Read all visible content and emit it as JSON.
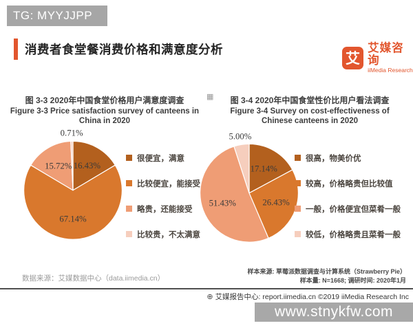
{
  "page": {
    "badge": "TG: MYYJJPP",
    "title": "消费者食堂餐消费价格和满意度分析"
  },
  "brand": {
    "logo_char": "艾",
    "name_cn": "艾媒咨询",
    "name_en": "iiMedia Research"
  },
  "icons": {
    "globe": "⊕",
    "qr": "▦"
  },
  "colors": {
    "accent": "#e2562e",
    "badge_bg": "#a6a6a6",
    "watermark_bg": "#a8a8a8",
    "pie_palette": [
      "#b3601e",
      "#d9782d",
      "#ef9d75",
      "#f6cebd"
    ]
  },
  "chart_data": [
    {
      "type": "pie",
      "title_cn": "图 3-3 2020年中国食堂价格用户满意度调查",
      "title_en": "Figure 3-3 Price satisfaction survey of canteens in China in 2020",
      "legend_position": "right",
      "start_angle": "top, clockwise",
      "slices": [
        {
          "label": "很便宜，满意",
          "value": 16.43,
          "value_label": "16.43%",
          "color": "#b3601e"
        },
        {
          "label": "比较便宜，能接受",
          "value": 67.14,
          "value_label": "67.14%",
          "color": "#d9782d"
        },
        {
          "label": "略贵，还能接受",
          "value": 15.72,
          "value_label": "15.72%",
          "color": "#ef9d75"
        },
        {
          "label": "比较贵，不太满意",
          "value": 0.71,
          "value_label": "0.71%",
          "color": "#f6cebd"
        }
      ]
    },
    {
      "type": "pie",
      "title_cn": "图 3-4 2020年中国食堂性价比用户看法调查",
      "title_en": "Figure 3-4 Survey on cost-effectiveness of Chinese canteens in 2020",
      "legend_position": "right",
      "start_angle": "top, clockwise",
      "slices": [
        {
          "label": "很高，物美价优",
          "value": 17.14,
          "value_label": "17.14%",
          "color": "#b3601e"
        },
        {
          "label": "较高，价格略贵但比较值",
          "value": 26.43,
          "value_label": "26.43%",
          "color": "#d9782d"
        },
        {
          "label": "一般，价格便宜但菜肴一般",
          "value": 51.43,
          "value_label": "51.43%",
          "color": "#ef9d75"
        },
        {
          "label": "较低，价格略贵且菜肴一般",
          "value": 5.0,
          "value_label": "5.00%",
          "color": "#f6cebd"
        }
      ]
    }
  ],
  "footer": {
    "data_source": "数据来源：艾媒数据中心（data.iimedia.cn）",
    "sample_source": "样本来源: 草莓派数据调查与计算系统（Strawberry Pie）",
    "sample_info": "样本量: N=1668; 调研时间: 2020年1月",
    "report_center": "艾媒报告中心: report.iimedia.cn ©2019  iiMedia Research Inc",
    "watermark": "www.stnykfw.com"
  }
}
